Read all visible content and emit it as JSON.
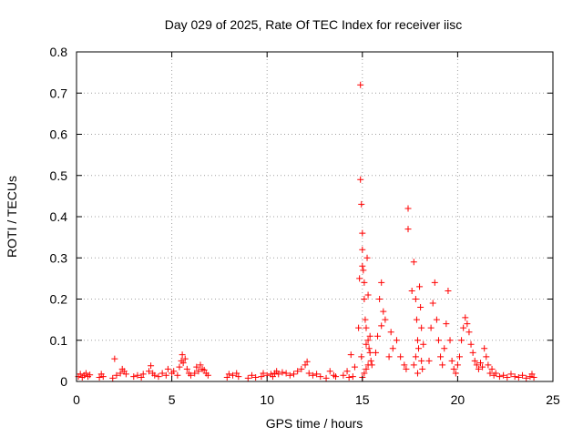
{
  "chart_data": {
    "type": "scatter",
    "title": "Day 029 of 2025, Rate Of TEC Index for receiver iisc",
    "xlabel": "GPS time / hours",
    "ylabel": "ROTI / TECUs",
    "xlim": [
      0,
      25
    ],
    "ylim": [
      0,
      0.8
    ],
    "xticks": [
      "0",
      "5",
      "10",
      "15",
      "20",
      "25"
    ],
    "yticks": [
      "0",
      "0.1",
      "0.2",
      "0.3",
      "0.4",
      "0.5",
      "0.6",
      "0.7",
      "0.8"
    ],
    "grid": true,
    "marker": "plus",
    "color": "#ff0000",
    "points": [
      [
        0.1,
        0.012
      ],
      [
        0.2,
        0.018
      ],
      [
        0.3,
        0.01
      ],
      [
        0.4,
        0.015
      ],
      [
        0.5,
        0.02
      ],
      [
        0.6,
        0.012
      ],
      [
        0.7,
        0.016
      ],
      [
        1.2,
        0.01
      ],
      [
        1.3,
        0.018
      ],
      [
        1.4,
        0.012
      ],
      [
        1.9,
        0.008
      ],
      [
        2.0,
        0.055
      ],
      [
        2.1,
        0.015
      ],
      [
        2.3,
        0.02
      ],
      [
        2.4,
        0.03
      ],
      [
        2.5,
        0.025
      ],
      [
        2.6,
        0.018
      ],
      [
        3.0,
        0.012
      ],
      [
        3.2,
        0.015
      ],
      [
        3.4,
        0.01
      ],
      [
        3.5,
        0.018
      ],
      [
        3.8,
        0.025
      ],
      [
        3.9,
        0.038
      ],
      [
        4.0,
        0.02
      ],
      [
        4.1,
        0.015
      ],
      [
        4.3,
        0.012
      ],
      [
        4.5,
        0.02
      ],
      [
        4.7,
        0.015
      ],
      [
        4.8,
        0.03
      ],
      [
        5.0,
        0.02
      ],
      [
        5.1,
        0.025
      ],
      [
        5.3,
        0.015
      ],
      [
        5.4,
        0.035
      ],
      [
        5.5,
        0.05
      ],
      [
        5.55,
        0.065
      ],
      [
        5.6,
        0.045
      ],
      [
        5.7,
        0.055
      ],
      [
        5.8,
        0.03
      ],
      [
        5.9,
        0.02
      ],
      [
        6.0,
        0.015
      ],
      [
        6.2,
        0.02
      ],
      [
        6.3,
        0.035
      ],
      [
        6.4,
        0.025
      ],
      [
        6.5,
        0.04
      ],
      [
        6.6,
        0.03
      ],
      [
        6.7,
        0.028
      ],
      [
        6.8,
        0.02
      ],
      [
        6.9,
        0.015
      ],
      [
        7.9,
        0.01
      ],
      [
        8.0,
        0.018
      ],
      [
        8.2,
        0.015
      ],
      [
        8.4,
        0.02
      ],
      [
        8.5,
        0.012
      ],
      [
        9.0,
        0.008
      ],
      [
        9.2,
        0.015
      ],
      [
        9.4,
        0.01
      ],
      [
        9.7,
        0.012
      ],
      [
        9.8,
        0.02
      ],
      [
        10.0,
        0.015
      ],
      [
        10.2,
        0.018
      ],
      [
        10.3,
        0.012
      ],
      [
        10.4,
        0.02
      ],
      [
        10.5,
        0.025
      ],
      [
        10.6,
        0.018
      ],
      [
        10.8,
        0.022
      ],
      [
        11.0,
        0.02
      ],
      [
        11.2,
        0.015
      ],
      [
        11.4,
        0.018
      ],
      [
        11.6,
        0.025
      ],
      [
        11.8,
        0.03
      ],
      [
        12.0,
        0.04
      ],
      [
        12.1,
        0.048
      ],
      [
        12.2,
        0.02
      ],
      [
        12.4,
        0.015
      ],
      [
        12.6,
        0.018
      ],
      [
        12.8,
        0.012
      ],
      [
        13.1,
        0.008
      ],
      [
        13.3,
        0.025
      ],
      [
        13.5,
        0.015
      ],
      [
        13.6,
        0.012
      ],
      [
        14.0,
        0.015
      ],
      [
        14.2,
        0.025
      ],
      [
        14.3,
        0.01
      ],
      [
        14.4,
        0.065
      ],
      [
        14.5,
        0.012
      ],
      [
        14.6,
        0.035
      ],
      [
        14.8,
        0.13
      ],
      [
        14.85,
        0.25
      ],
      [
        14.9,
        0.49
      ],
      [
        14.9,
        0.72
      ],
      [
        14.95,
        0.43
      ],
      [
        15.0,
        0.36
      ],
      [
        15.0,
        0.32
      ],
      [
        15.0,
        0.28
      ],
      [
        15.05,
        0.27
      ],
      [
        15.1,
        0.24
      ],
      [
        15.1,
        0.2
      ],
      [
        15.15,
        0.15
      ],
      [
        15.2,
        0.13
      ],
      [
        15.25,
        0.3
      ],
      [
        15.3,
        0.21
      ],
      [
        15.3,
        0.1
      ],
      [
        15.35,
        0.08
      ],
      [
        15.4,
        0.07
      ],
      [
        15.45,
        0.05
      ],
      [
        15.5,
        0.04
      ],
      [
        15.2,
        0.03
      ],
      [
        15.1,
        0.02
      ],
      [
        15.0,
        0.01
      ],
      [
        14.95,
        0.06
      ],
      [
        15.3,
        0.04
      ],
      [
        15.2,
        0.09
      ],
      [
        15.4,
        0.11
      ],
      [
        15.7,
        0.07
      ],
      [
        15.8,
        0.11
      ],
      [
        15.9,
        0.2
      ],
      [
        16.0,
        0.24
      ],
      [
        16.1,
        0.17
      ],
      [
        16.0,
        0.135
      ],
      [
        16.2,
        0.15
      ],
      [
        16.4,
        0.06
      ],
      [
        16.5,
        0.12
      ],
      [
        16.6,
        0.08
      ],
      [
        16.8,
        0.1
      ],
      [
        17.0,
        0.06
      ],
      [
        17.2,
        0.04
      ],
      [
        17.3,
        0.03
      ],
      [
        17.4,
        0.42
      ],
      [
        17.4,
        0.37
      ],
      [
        17.6,
        0.22
      ],
      [
        17.7,
        0.29
      ],
      [
        17.8,
        0.2
      ],
      [
        17.85,
        0.15
      ],
      [
        17.9,
        0.1
      ],
      [
        17.95,
        0.08
      ],
      [
        18.0,
        0.23
      ],
      [
        18.05,
        0.18
      ],
      [
        18.1,
        0.13
      ],
      [
        18.1,
        0.05
      ],
      [
        18.15,
        0.03
      ],
      [
        17.9,
        0.02
      ],
      [
        17.8,
        0.06
      ],
      [
        18.2,
        0.09
      ],
      [
        17.7,
        0.04
      ],
      [
        18.5,
        0.05
      ],
      [
        18.6,
        0.13
      ],
      [
        18.7,
        0.19
      ],
      [
        18.8,
        0.24
      ],
      [
        18.9,
        0.15
      ],
      [
        19.0,
        0.1
      ],
      [
        19.1,
        0.06
      ],
      [
        19.2,
        0.04
      ],
      [
        19.3,
        0.08
      ],
      [
        19.4,
        0.14
      ],
      [
        19.5,
        0.22
      ],
      [
        19.6,
        0.1
      ],
      [
        19.7,
        0.05
      ],
      [
        19.8,
        0.03
      ],
      [
        19.9,
        0.02
      ],
      [
        20.0,
        0.04
      ],
      [
        20.1,
        0.06
      ],
      [
        20.2,
        0.1
      ],
      [
        20.3,
        0.13
      ],
      [
        20.4,
        0.155
      ],
      [
        20.5,
        0.14
      ],
      [
        20.6,
        0.12
      ],
      [
        20.7,
        0.09
      ],
      [
        20.8,
        0.07
      ],
      [
        20.9,
        0.05
      ],
      [
        21.0,
        0.04
      ],
      [
        21.1,
        0.03
      ],
      [
        21.2,
        0.045
      ],
      [
        21.3,
        0.035
      ],
      [
        21.4,
        0.08
      ],
      [
        21.5,
        0.06
      ],
      [
        21.6,
        0.04
      ],
      [
        21.7,
        0.02
      ],
      [
        21.8,
        0.03
      ],
      [
        21.9,
        0.015
      ],
      [
        22.0,
        0.02
      ],
      [
        22.2,
        0.012
      ],
      [
        22.4,
        0.015
      ],
      [
        22.6,
        0.01
      ],
      [
        22.8,
        0.018
      ],
      [
        23.0,
        0.012
      ],
      [
        23.2,
        0.01
      ],
      [
        23.4,
        0.015
      ],
      [
        23.6,
        0.008
      ],
      [
        23.8,
        0.012
      ],
      [
        23.9,
        0.018
      ],
      [
        24.0,
        0.01
      ]
    ]
  }
}
